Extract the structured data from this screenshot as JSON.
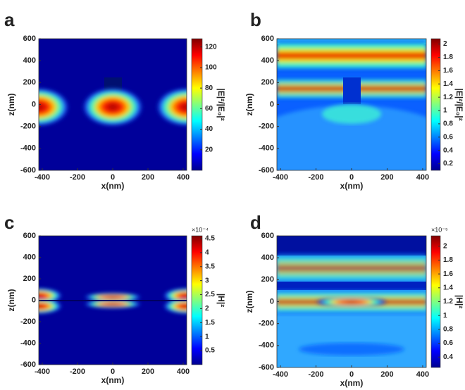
{
  "chart_data": [
    {
      "type": "heatmap",
      "panel": "a",
      "xlabel": "x(nm)",
      "ylabel": "z(nm)",
      "colormap": "jet",
      "xlim": [
        -420,
        420
      ],
      "xticks": [
        -400,
        -200,
        0,
        200,
        400
      ],
      "ylim": [
        -600,
        600
      ],
      "yticks": [
        -600,
        -400,
        -200,
        0,
        200,
        400,
        600
      ],
      "colorbar": {
        "label": "|E|²/|E₀|²",
        "lim": [
          0,
          128
        ],
        "ticks": [
          20,
          40,
          60,
          80,
          100,
          120
        ]
      }
    },
    {
      "type": "heatmap",
      "panel": "b",
      "xlabel": "x(nm)",
      "ylabel": "z(nm)",
      "colormap": "jet",
      "xlim": [
        -420,
        420
      ],
      "xticks": [
        -400,
        -200,
        0,
        200,
        400
      ],
      "ylim": [
        -600,
        600
      ],
      "yticks": [
        -600,
        -400,
        -200,
        0,
        200,
        400,
        600
      ],
      "colorbar": {
        "label": "|E|²/|E₀|²",
        "lim": [
          0.1,
          2.08
        ],
        "ticks": [
          0.2,
          0.4,
          0.6,
          0.8,
          1,
          1.2,
          1.4,
          1.6,
          1.8,
          2
        ]
      }
    },
    {
      "type": "heatmap",
      "panel": "c",
      "xlabel": "x(nm)",
      "ylabel": "z(nm)",
      "colormap": "jet",
      "xlim": [
        -420,
        420
      ],
      "xticks": [
        -400,
        -200,
        0,
        200,
        400
      ],
      "ylim": [
        -600,
        600
      ],
      "yticks": [
        -600,
        -400,
        -200,
        0,
        200,
        400,
        600
      ],
      "colorbar": {
        "label": "|H|²",
        "scale_label": "×10⁻⁴",
        "lim": [
          0,
          4.6
        ],
        "ticks": [
          0.5,
          1,
          1.5,
          2,
          2.5,
          3,
          3.5,
          4,
          4.5
        ]
      }
    },
    {
      "type": "heatmap",
      "panel": "d",
      "xlabel": "x(nm)",
      "ylabel": "z(nm)",
      "colormap": "jet",
      "xlim": [
        -420,
        420
      ],
      "xticks": [
        -400,
        -200,
        0,
        200,
        400
      ],
      "ylim": [
        -600,
        600
      ],
      "yticks": [
        -600,
        -400,
        -200,
        0,
        200,
        400,
        600
      ],
      "colorbar": {
        "label": "|H|²",
        "scale_label": "×10⁻⁵",
        "lim": [
          0.25,
          2.15
        ],
        "ticks": [
          0.4,
          0.6,
          0.8,
          1,
          1.2,
          1.4,
          1.6,
          1.8,
          2
        ]
      }
    }
  ]
}
